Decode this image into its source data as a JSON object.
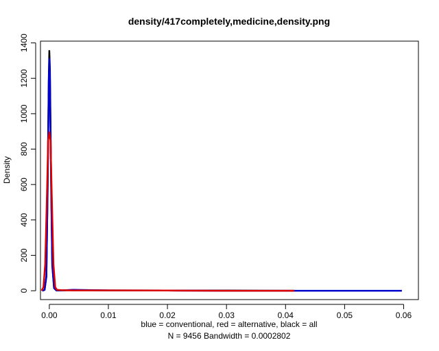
{
  "chart_data": {
    "type": "line",
    "title": "density/417completely,medicine,density.png",
    "xlabel": "blue = conventional, red = alternative, black = all",
    "sublabel": "N = 9456   Bandwidth = 0.0002802",
    "ylabel": "Density",
    "xlim": [
      -0.0015,
      0.0625
    ],
    "ylim": [
      -50,
      1410
    ],
    "x_ticks": [
      0.0,
      0.01,
      0.02,
      0.03,
      0.04,
      0.05,
      0.06
    ],
    "x_tick_labels": [
      "0.00",
      "0.01",
      "0.02",
      "0.03",
      "0.04",
      "0.05",
      "0.06"
    ],
    "y_ticks": [
      0,
      200,
      400,
      600,
      800,
      1000,
      1200,
      1400
    ],
    "y_tick_labels": [
      "0",
      "200",
      "400",
      "600",
      "800",
      "1000",
      "1200",
      "1400"
    ],
    "grid": false,
    "legend": "none",
    "series": [
      {
        "color": "#000000",
        "x": [
          -0.0012,
          -0.0008,
          -0.0005,
          -0.0003,
          -0.0001,
          0.0,
          0.0001,
          0.0003,
          0.0005,
          0.0008,
          0.0012,
          0.002,
          0.004,
          0.01,
          0.02,
          0.03,
          0.0415
        ],
        "y": [
          0,
          5,
          80,
          550,
          1200,
          1355,
          1250,
          650,
          150,
          15,
          2,
          2,
          3,
          2,
          1,
          1,
          0
        ]
      },
      {
        "color": "#0000cc",
        "x": [
          -0.0012,
          -0.0008,
          -0.0005,
          -0.0003,
          -0.0001,
          0.0,
          0.0001,
          0.0003,
          0.0005,
          0.0008,
          0.0012,
          0.002,
          0.004,
          0.01,
          0.02,
          0.03,
          0.04,
          0.05,
          0.0597
        ],
        "y": [
          0,
          5,
          80,
          520,
          1180,
          1310,
          1200,
          600,
          140,
          15,
          2,
          2,
          5,
          2,
          1,
          0,
          0,
          0,
          0
        ]
      },
      {
        "color": "#dd0000",
        "x": [
          -0.0013,
          -0.001,
          -0.0007,
          -0.0004,
          -0.0002,
          0.0,
          0.0002,
          0.0004,
          0.0007,
          0.001,
          0.0013,
          0.002,
          0.004,
          0.01,
          0.02,
          0.03,
          0.0415
        ],
        "y": [
          0,
          20,
          150,
          550,
          850,
          895,
          850,
          550,
          150,
          20,
          5,
          3,
          2,
          2,
          1,
          0,
          0
        ]
      }
    ]
  }
}
